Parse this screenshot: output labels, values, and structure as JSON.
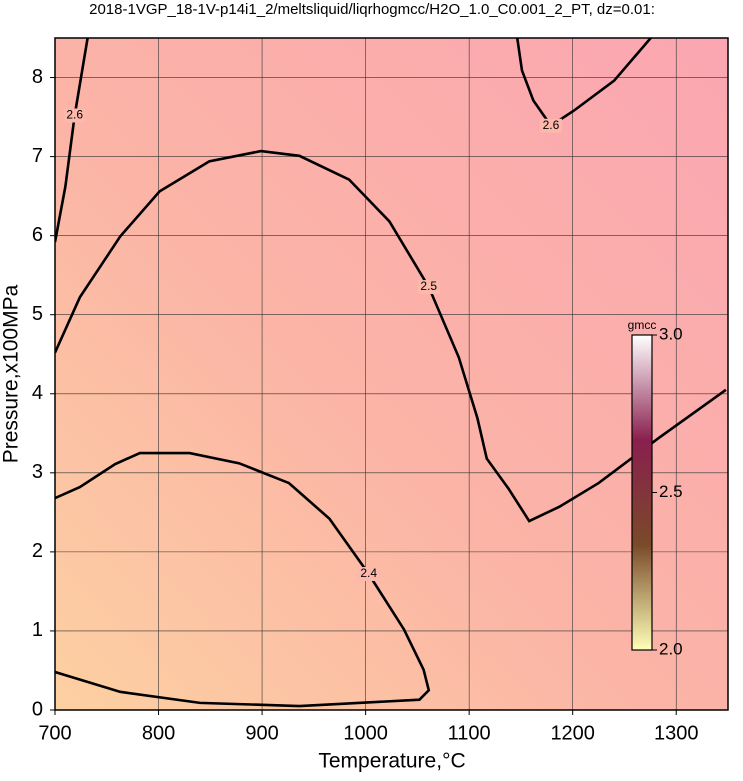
{
  "chart_data": {
    "type": "contour",
    "title": "2018-1VGP_18-1V-p14i1_2/meltsliquid/liqrhogmcc/H2O_1.0_C0.001_2_PT, dz=0.01:",
    "xlabel": "Temperature,°C",
    "ylabel": "Pressure,x100MPa",
    "xlim": [
      700,
      1350
    ],
    "ylim": [
      0,
      8.5
    ],
    "xticks": [
      700,
      800,
      900,
      1000,
      1100,
      1200,
      1300
    ],
    "yticks": [
      0,
      1,
      2,
      3,
      4,
      5,
      6,
      7,
      8
    ],
    "grid": true,
    "contours": [
      {
        "level": 2.4,
        "x": [
          700,
          724,
          758,
          782,
          830,
          878,
          926,
          965,
          1003,
          1037,
          1056,
          1061,
          1052,
          936,
          840,
          763,
          700
        ],
        "y": [
          2.68,
          2.82,
          3.11,
          3.25,
          3.25,
          3.12,
          2.87,
          2.42,
          1.72,
          1.02,
          0.51,
          0.25,
          0.13,
          0.05,
          0.09,
          0.23,
          0.48
        ]
      },
      {
        "level": 2.5,
        "x": [
          700,
          724,
          763,
          801,
          849,
          899,
          936,
          984,
          1023,
          1061,
          1090,
          1108,
          1117,
          1138,
          1158,
          1187,
          1225,
          1283,
          1348
        ],
        "y": [
          4.52,
          5.22,
          5.99,
          6.56,
          6.94,
          7.07,
          7.01,
          6.71,
          6.18,
          5.35,
          4.46,
          3.69,
          3.18,
          2.8,
          2.39,
          2.57,
          2.87,
          3.44,
          4.05
        ]
      },
      {
        "level": 2.6,
        "x": [
          700,
          710,
          719,
          732
        ],
        "y": [
          5.92,
          6.62,
          7.52,
          8.54
        ]
      },
      {
        "level": 2.6,
        "x": [
          1146,
          1151,
          1162,
          1179,
          1201,
          1240,
          1278
        ],
        "y": [
          8.54,
          8.09,
          7.71,
          7.39,
          7.58,
          7.96,
          8.54
        ]
      }
    ],
    "colorbar": {
      "label": "gmcc",
      "clim": [
        2,
        3
      ],
      "ticks": [
        {
          "value": 2,
          "label": "2.0"
        },
        2.5,
        {
          "value": 3,
          "label": "3.0"
        }
      ],
      "colors": [
        "#ffffb8",
        "#7a4a2a",
        "#8a1f4e",
        "#ffffff"
      ]
    }
  }
}
